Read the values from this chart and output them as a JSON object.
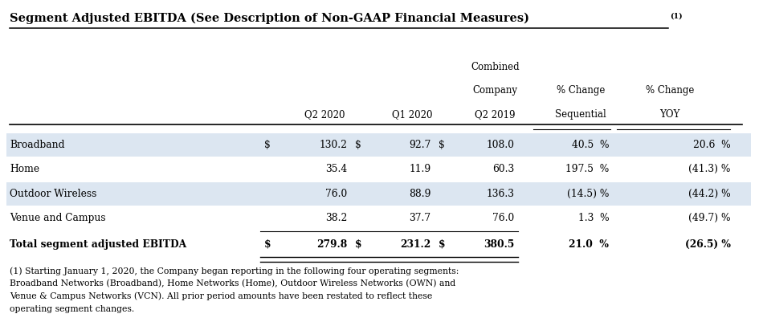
{
  "title": "Segment Adjusted EBITDA (See Description of Non-GAAP Financial Measures)",
  "title_superscript": "(1)",
  "rows": [
    {
      "label": "Broadband",
      "q2_dollar": "$",
      "q2_val": "130.2",
      "q1_dollar": "$",
      "q1_val": "92.7",
      "comb_dollar": "$",
      "comb_val": "108.0",
      "seq": "40.5  %",
      "yoy": "20.6  %",
      "highlight": true,
      "bold": false
    },
    {
      "label": "Home",
      "q2_dollar": "",
      "q2_val": "35.4",
      "q1_dollar": "",
      "q1_val": "11.9",
      "comb_dollar": "",
      "comb_val": "60.3",
      "seq": "197.5  %",
      "yoy": "(41.3) %",
      "highlight": false,
      "bold": false
    },
    {
      "label": "Outdoor Wireless",
      "q2_dollar": "",
      "q2_val": "76.0",
      "q1_dollar": "",
      "q1_val": "88.9",
      "comb_dollar": "",
      "comb_val": "136.3",
      "seq": "(14.5) %",
      "yoy": "(44.2) %",
      "highlight": true,
      "bold": false
    },
    {
      "label": "Venue and Campus",
      "q2_dollar": "",
      "q2_val": "38.2",
      "q1_dollar": "",
      "q1_val": "37.7",
      "comb_dollar": "",
      "comb_val": "76.0",
      "seq": "1.3  %",
      "yoy": "(49.7) %",
      "highlight": false,
      "bold": false
    },
    {
      "label": "Total segment adjusted EBITDA",
      "q2_dollar": "$",
      "q2_val": "279.8",
      "q1_dollar": "$",
      "q1_val": "231.2",
      "comb_dollar": "$",
      "comb_val": "380.5",
      "seq": "21.0  %",
      "yoy": "(26.5) %",
      "highlight": false,
      "bold": true
    }
  ],
  "footnote": "(1) Starting January 1, 2020, the Company began reporting in the following four operating segments:\nBroadband Networks (Broadband), Home Networks (Home), Outdoor Wireless Networks (OWN) and\nVenue & Campus Networks (VCN). All prior period amounts have been restated to reflect these\noperating segment changes.",
  "highlight_color": "#dce6f1",
  "bg_color": "#ffffff",
  "text_color": "#000000"
}
